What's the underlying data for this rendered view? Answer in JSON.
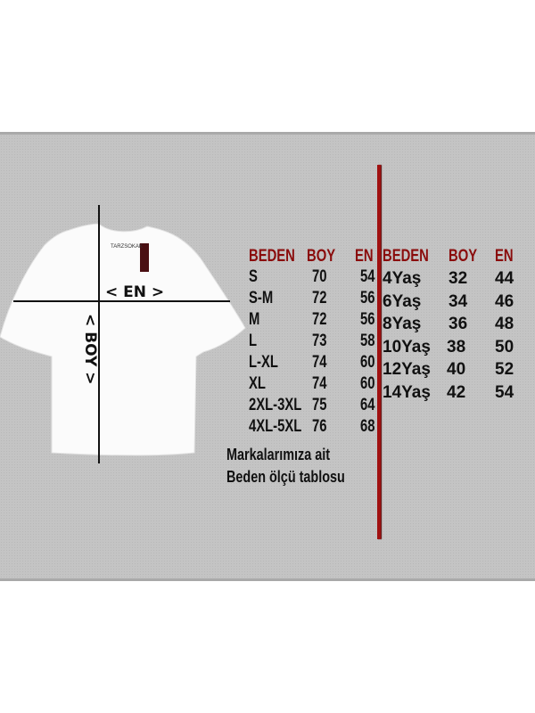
{
  "diagram": {
    "width_label": "< EN >",
    "length_label": "< BOY >",
    "brand_tag": "TARZSOKAK",
    "colors": {
      "header": "#8a0c0c",
      "divider": "#a01010",
      "panel": "#c4c4c4"
    }
  },
  "adult_table": {
    "headers": [
      "BEDEN",
      "BOY",
      "EN"
    ],
    "rows": [
      [
        "S",
        "70",
        "54"
      ],
      [
        "S-M",
        "72",
        "56"
      ],
      [
        "M",
        "72",
        "56"
      ],
      [
        "L",
        "73",
        "58"
      ],
      [
        "L-XL",
        "74",
        "60"
      ],
      [
        "XL",
        "74",
        "60"
      ],
      [
        "2XL-3XL",
        "75",
        "64"
      ],
      [
        "4XL-5XL",
        "76",
        "68"
      ]
    ]
  },
  "kids_table": {
    "headers": [
      "BEDEN",
      "BOY",
      "EN"
    ],
    "rows": [
      [
        "4Yaş",
        "32",
        "44"
      ],
      [
        "6Yaş",
        "34",
        "46"
      ],
      [
        "8Yaş",
        "36",
        "48"
      ],
      [
        "10Yaş",
        "38",
        "50"
      ],
      [
        "12Yaş",
        "40",
        "52"
      ],
      [
        "14Yaş",
        "42",
        "54"
      ]
    ]
  },
  "note": {
    "line1": "Markalarımıza ait",
    "line2": "Beden ölçü tablosu"
  }
}
